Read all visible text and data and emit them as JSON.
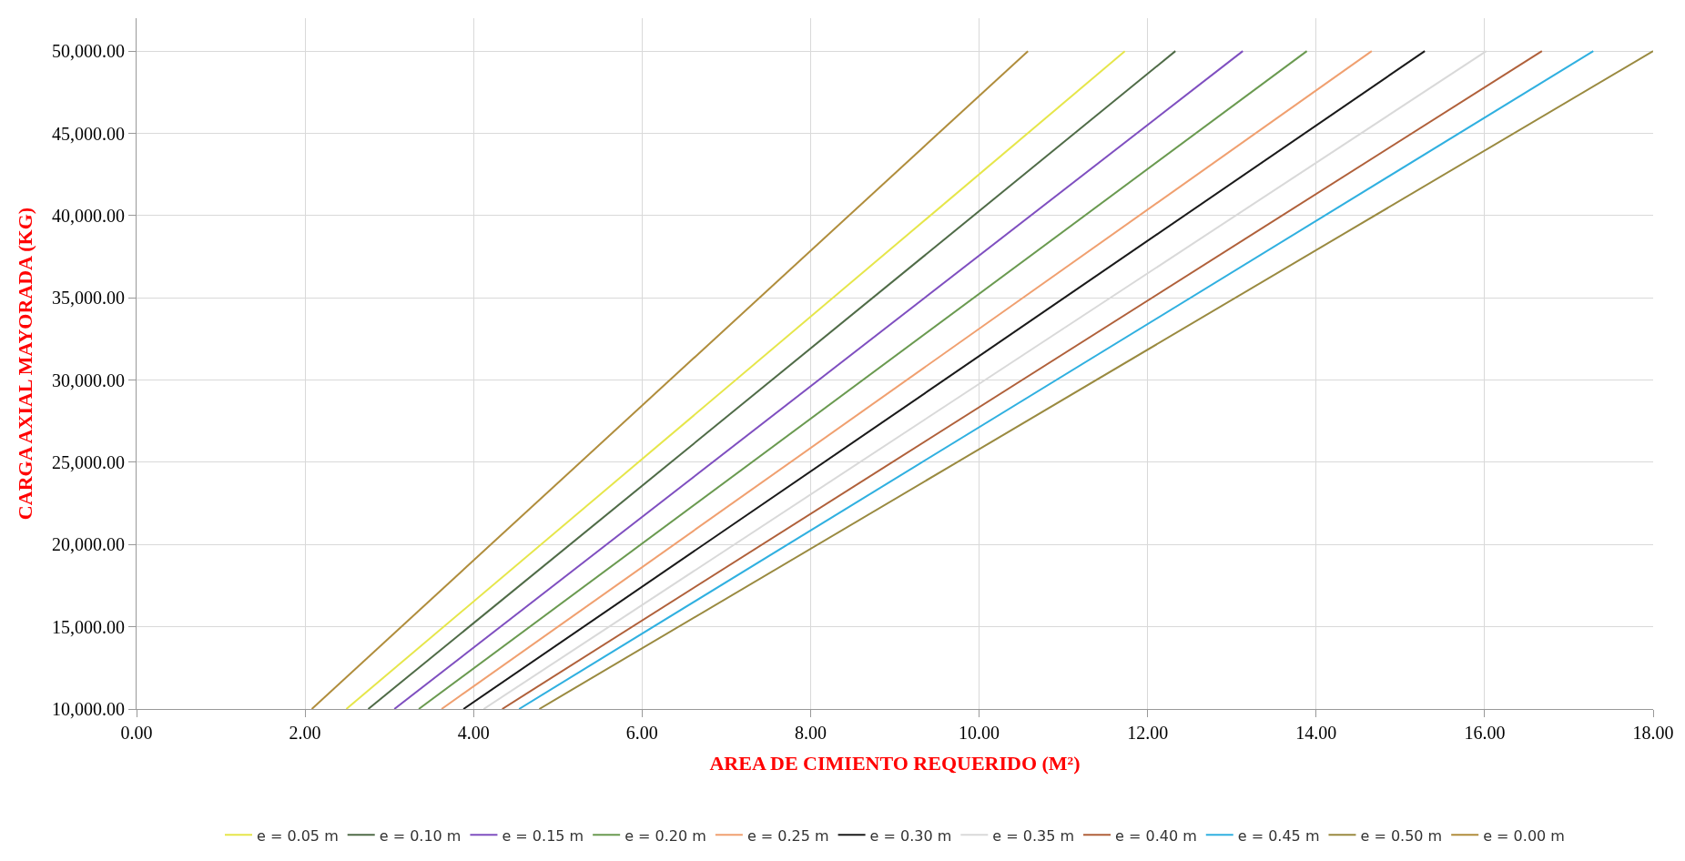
{
  "chart_data": {
    "type": "line",
    "xlabel": "AREA DE CIMIENTO REQUERIDO (M²)",
    "ylabel": "CARGA AXIAL MAYORADA (KG)",
    "grid": true,
    "legend": "bottom",
    "marker": "none",
    "line_style": "solid",
    "xlim": [
      0,
      18
    ],
    "ylim": [
      10000,
      52000
    ],
    "xticks": [
      {
        "value": 0,
        "label": "0.00"
      },
      {
        "value": 2,
        "label": "2.00"
      },
      {
        "value": 4,
        "label": "4.00"
      },
      {
        "value": 6,
        "label": "6.00"
      },
      {
        "value": 8,
        "label": "8.00"
      },
      {
        "value": 10,
        "label": "10.00"
      },
      {
        "value": 12,
        "label": "12.00"
      },
      {
        "value": 14,
        "label": "14.00"
      },
      {
        "value": 16,
        "label": "16.00"
      },
      {
        "value": 18,
        "label": "18.00"
      }
    ],
    "yticks": [
      {
        "value": 10000,
        "label": "10,000.00"
      },
      {
        "value": 15000,
        "label": "15,000.00"
      },
      {
        "value": 20000,
        "label": "20,000.00"
      },
      {
        "value": 25000,
        "label": "25,000.00"
      },
      {
        "value": 30000,
        "label": "30,000.00"
      },
      {
        "value": 35000,
        "label": "35,000.00"
      },
      {
        "value": 40000,
        "label": "40,000.00"
      },
      {
        "value": 45000,
        "label": "45,000.00"
      },
      {
        "value": 50000,
        "label": "50,000.00"
      }
    ],
    "series": [
      {
        "name": "e = 0.05 m",
        "color": "#e6e64a",
        "x": [
          2.49,
          11.73
        ],
        "values": [
          10000,
          50000
        ]
      },
      {
        "name": "e = 0.10 m",
        "color": "#4f6b47",
        "x": [
          2.75,
          12.33
        ],
        "values": [
          10000,
          50000
        ]
      },
      {
        "name": "e = 0.15 m",
        "color": "#7f4fc0",
        "x": [
          3.06,
          13.13
        ],
        "values": [
          10000,
          50000
        ]
      },
      {
        "name": "e = 0.20 m",
        "color": "#6a9a50",
        "x": [
          3.35,
          13.89
        ],
        "values": [
          10000,
          50000
        ]
      },
      {
        "name": "e = 0.25 m",
        "color": "#f0a070",
        "x": [
          3.62,
          14.66
        ],
        "values": [
          10000,
          50000
        ]
      },
      {
        "name": "e = 0.30 m",
        "color": "#1a1a1a",
        "x": [
          3.88,
          15.29
        ],
        "values": [
          10000,
          50000
        ]
      },
      {
        "name": "e = 0.35 m",
        "color": "#d9d9d9",
        "x": [
          4.12,
          16.02
        ],
        "values": [
          10000,
          50000
        ]
      },
      {
        "name": "e = 0.40 m",
        "color": "#b0603a",
        "x": [
          4.34,
          16.68
        ],
        "values": [
          10000,
          50000
        ]
      },
      {
        "name": "e = 0.45 m",
        "color": "#30b0e0",
        "x": [
          4.54,
          17.29
        ],
        "values": [
          10000,
          50000
        ]
      },
      {
        "name": "e = 0.50 m",
        "color": "#9a8a40",
        "x": [
          4.78,
          18.0
        ],
        "values": [
          10000,
          50000
        ]
      },
      {
        "name": "e = 0.00 m",
        "color": "#b08d3c",
        "x": [
          2.08,
          10.58
        ],
        "values": [
          10000,
          50000
        ]
      }
    ]
  }
}
